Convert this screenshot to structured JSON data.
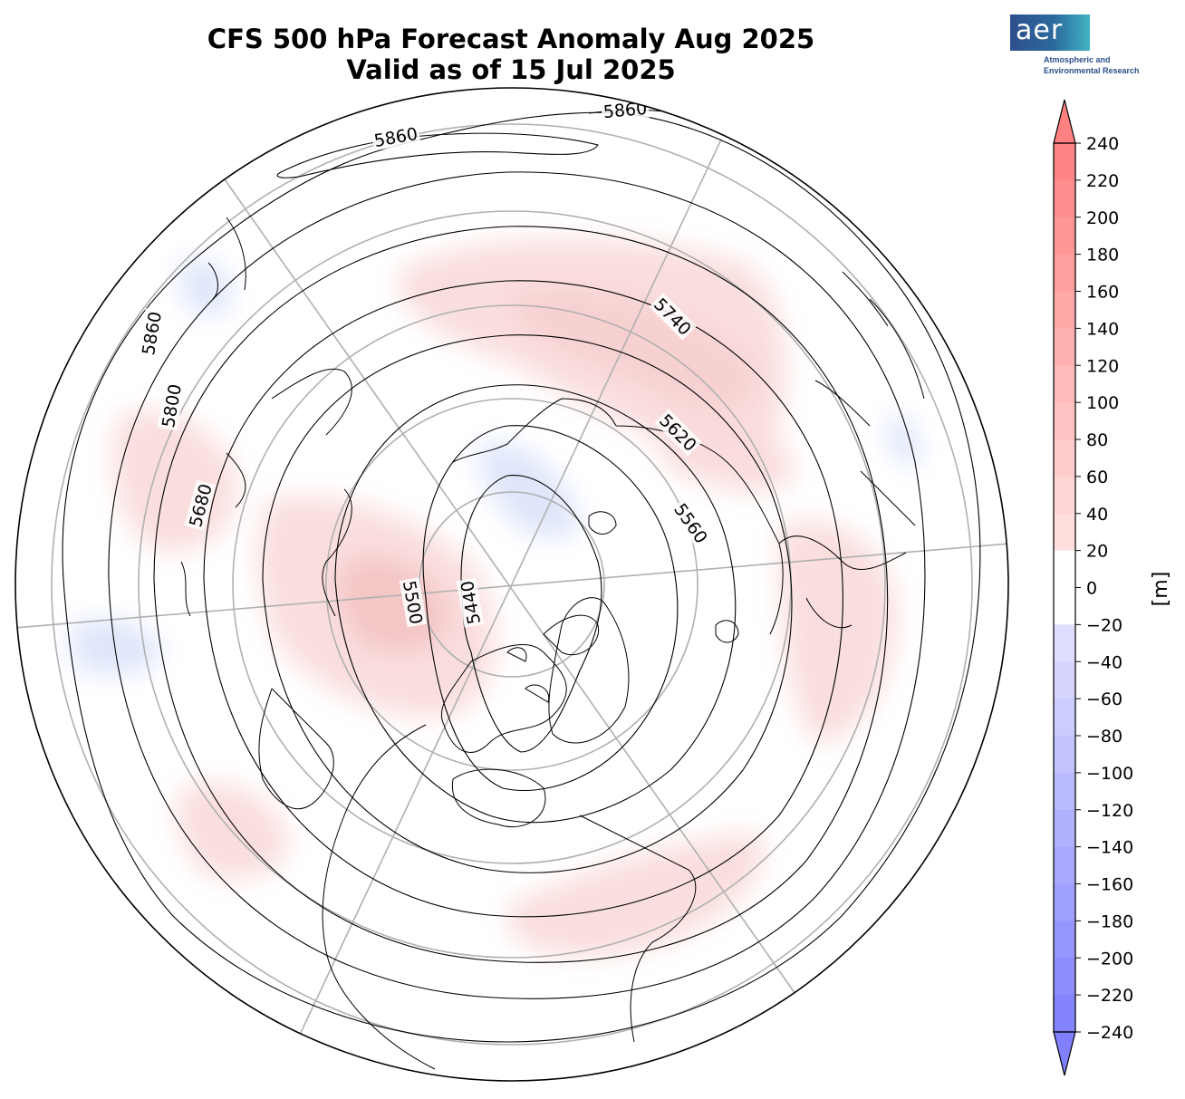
{
  "title": {
    "line1": "CFS 500 hPa Forecast Anomaly Aug 2025",
    "line2": "Valid as of 15 Jul 2025"
  },
  "logo": {
    "name": "aer",
    "subtitle_line1": "Atmospheric and",
    "subtitle_line2": "Environmental Research"
  },
  "colorbar": {
    "unit_label": "[m]",
    "ticks": [
      240,
      220,
      200,
      180,
      160,
      140,
      120,
      100,
      80,
      60,
      40,
      20,
      0,
      -20,
      -40,
      -60,
      -80,
      -100,
      -120,
      -140,
      -160,
      -180,
      -200,
      -220,
      -240
    ],
    "tick_labels": [
      "240",
      "220",
      "200",
      "180",
      "160",
      "140",
      "120",
      "100",
      "80",
      "60",
      "40",
      "20",
      "0",
      "−20",
      "−40",
      "−60",
      "−80",
      "−100",
      "−120",
      "−140",
      "−160",
      "−180",
      "−200",
      "−220",
      "−240"
    ],
    "range": [
      -240,
      240
    ],
    "colormap": {
      "negative_end": "#8080ff",
      "zero": "#ffffff",
      "positive_end": "#ff8080"
    }
  },
  "map": {
    "projection": "north-polar-stereographic",
    "contour_labels": [
      "5860",
      "5860",
      "5860",
      "5800",
      "5680",
      "5740",
      "5620",
      "5560",
      "5500",
      "5440"
    ],
    "colors": {
      "land_outline": "#000000",
      "graticule": "#b0b0b0",
      "contour": "#000000",
      "positive_anomaly": "#f7d0d0",
      "negative_anomaly": "#dbe3fb"
    }
  }
}
